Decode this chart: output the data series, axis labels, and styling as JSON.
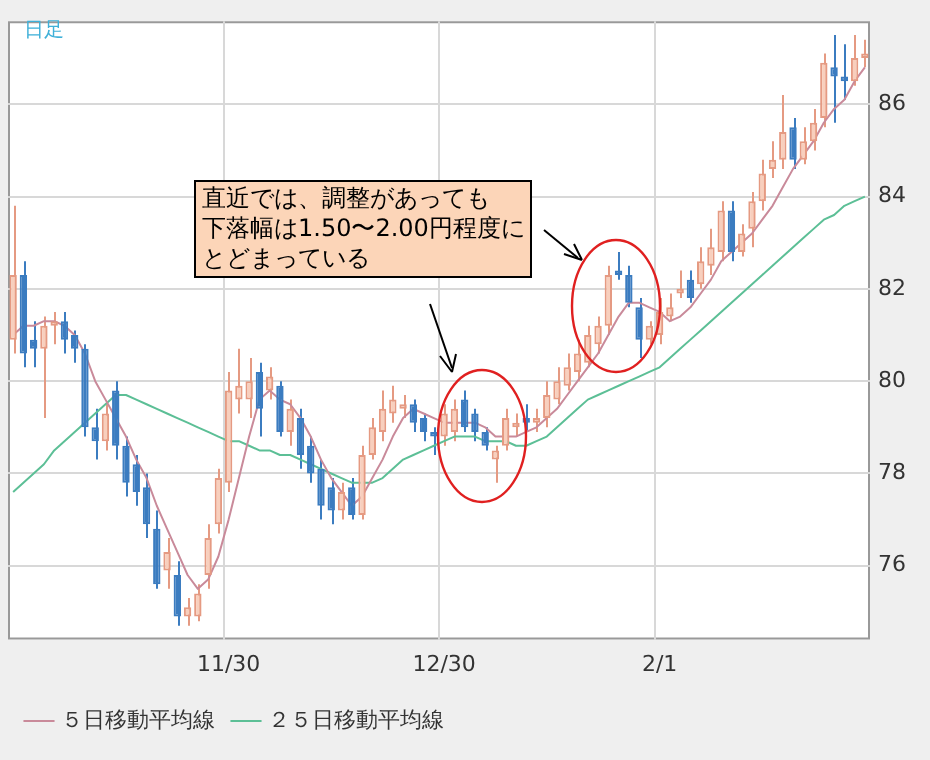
{
  "chart_data": {
    "type": "candlestick",
    "categories": [
      null,
      null,
      null,
      null,
      null,
      null,
      null,
      null,
      null,
      null,
      null,
      null,
      null,
      null,
      null,
      null,
      null,
      null,
      null,
      null,
      null,
      "11/30",
      null,
      null,
      null,
      null,
      null,
      null,
      null,
      null,
      null,
      null,
      null,
      null,
      null,
      null,
      null,
      null,
      null,
      null,
      null,
      null,
      "12/30",
      null,
      null,
      null,
      null,
      null,
      null,
      null,
      null,
      null,
      null,
      null,
      null,
      null,
      null,
      null,
      null,
      null,
      null,
      null,
      null,
      "2/1",
      null,
      null,
      null,
      null,
      null,
      null,
      null,
      null,
      null,
      null,
      null,
      null,
      null,
      null,
      null,
      null,
      null,
      null,
      null,
      null
    ],
    "ohlc": [
      [
        80.9,
        83.8,
        80.6,
        82.3
      ],
      [
        82.3,
        82.6,
        80.3,
        80.6
      ],
      [
        80.9,
        81.3,
        80.3,
        80.7
      ],
      [
        80.7,
        81.4,
        79.2,
        81.2
      ],
      [
        81.2,
        81.5,
        80.8,
        81.3
      ],
      [
        81.3,
        81.5,
        80.6,
        80.9
      ],
      [
        81.0,
        81.1,
        80.4,
        80.7
      ],
      [
        80.7,
        80.8,
        78.8,
        79.0
      ],
      [
        79.0,
        79.4,
        78.3,
        78.7
      ],
      [
        78.7,
        79.5,
        78.5,
        79.3
      ],
      [
        79.8,
        80.0,
        78.3,
        78.6
      ],
      [
        78.6,
        78.8,
        77.5,
        77.8
      ],
      [
        78.2,
        78.4,
        77.3,
        77.6
      ],
      [
        77.7,
        78.0,
        76.6,
        76.9
      ],
      [
        76.8,
        77.2,
        75.5,
        75.6
      ],
      [
        75.9,
        76.6,
        75.5,
        76.3
      ],
      [
        75.8,
        76.1,
        74.7,
        74.9
      ],
      [
        74.9,
        75.3,
        74.7,
        75.1
      ],
      [
        74.9,
        75.6,
        74.8,
        75.4
      ],
      [
        75.8,
        76.9,
        75.5,
        76.6
      ],
      [
        76.9,
        78.1,
        76.7,
        77.9
      ],
      [
        77.8,
        80.2,
        77.6,
        79.8
      ],
      [
        79.6,
        80.7,
        79.3,
        79.9
      ],
      [
        79.6,
        80.5,
        79.2,
        80.0
      ],
      [
        80.2,
        80.4,
        78.8,
        79.4
      ],
      [
        79.8,
        80.3,
        79.6,
        80.1
      ],
      [
        79.9,
        80.0,
        78.8,
        78.9
      ],
      [
        78.9,
        79.6,
        78.6,
        79.4
      ],
      [
        79.2,
        79.4,
        78.1,
        78.4
      ],
      [
        78.6,
        78.8,
        77.8,
        78.0
      ],
      [
        78.1,
        78.3,
        77.0,
        77.3
      ],
      [
        77.7,
        77.9,
        76.9,
        77.2
      ],
      [
        77.2,
        77.8,
        77.0,
        77.6
      ],
      [
        77.7,
        77.9,
        77.0,
        77.1
      ],
      [
        77.1,
        78.6,
        77.0,
        78.4
      ],
      [
        78.4,
        79.2,
        78.3,
        79.0
      ],
      [
        78.9,
        79.8,
        78.7,
        79.4
      ],
      [
        79.3,
        79.9,
        79.1,
        79.6
      ],
      [
        79.4,
        79.7,
        79.2,
        79.5
      ],
      [
        79.5,
        79.6,
        78.9,
        79.1
      ],
      [
        79.2,
        79.3,
        78.7,
        78.9
      ],
      [
        78.9,
        79.0,
        78.4,
        78.8
      ],
      [
        78.8,
        79.5,
        78.6,
        79.3
      ],
      [
        78.9,
        79.6,
        78.7,
        79.4
      ],
      [
        79.6,
        79.8,
        78.9,
        79.0
      ],
      [
        79.3,
        79.4,
        78.7,
        78.9
      ],
      [
        78.9,
        79.0,
        78.5,
        78.6
      ],
      [
        78.3,
        78.6,
        77.8,
        78.5
      ],
      [
        78.6,
        79.4,
        78.5,
        79.2
      ],
      [
        79.0,
        79.3,
        78.8,
        79.1
      ],
      [
        79.2,
        79.5,
        78.9,
        79.1
      ],
      [
        79.1,
        79.4,
        78.9,
        79.2
      ],
      [
        79.2,
        80.0,
        79.0,
        79.7
      ],
      [
        79.6,
        80.3,
        79.5,
        80.0
      ],
      [
        79.9,
        80.6,
        79.8,
        80.3
      ],
      [
        80.2,
        80.9,
        80.0,
        80.6
      ],
      [
        80.4,
        81.2,
        80.3,
        81.0
      ],
      [
        80.8,
        81.4,
        80.6,
        81.2
      ],
      [
        81.2,
        82.5,
        81.0,
        82.3
      ],
      [
        82.4,
        82.8,
        82.2,
        82.3
      ],
      [
        82.3,
        82.5,
        81.6,
        81.7
      ],
      [
        81.6,
        81.8,
        80.5,
        80.9
      ],
      [
        80.9,
        81.3,
        80.8,
        81.2
      ],
      [
        81.0,
        81.8,
        80.8,
        81.5
      ],
      [
        81.4,
        81.9,
        81.3,
        81.6
      ],
      [
        81.9,
        82.4,
        81.8,
        82.0
      ],
      [
        82.2,
        82.4,
        81.7,
        81.8
      ],
      [
        82.1,
        82.9,
        82.0,
        82.6
      ],
      [
        82.5,
        83.3,
        82.3,
        82.9
      ],
      [
        82.8,
        83.9,
        82.6,
        83.7
      ],
      [
        83.7,
        83.9,
        82.6,
        82.8
      ],
      [
        82.8,
        83.4,
        82.7,
        83.2
      ],
      [
        83.3,
        84.1,
        82.9,
        83.9
      ],
      [
        83.9,
        84.8,
        83.7,
        84.5
      ],
      [
        84.6,
        85.2,
        84.4,
        84.8
      ],
      [
        84.8,
        86.2,
        84.6,
        85.4
      ],
      [
        85.5,
        85.7,
        84.6,
        84.8
      ],
      [
        84.8,
        85.5,
        84.7,
        85.2
      ],
      [
        85.2,
        85.9,
        85.0,
        85.6
      ],
      [
        85.7,
        87.1,
        85.5,
        86.9
      ],
      [
        86.8,
        87.5,
        85.6,
        86.6
      ],
      [
        86.6,
        87.3,
        86.1,
        86.5
      ],
      [
        86.5,
        87.5,
        86.4,
        87.0
      ],
      [
        87.0,
        87.4,
        86.8,
        87.1
      ]
    ],
    "series": [
      {
        "name": "５日移動平均線",
        "type": "line",
        "color": "#c98a9a",
        "values": [
          81.0,
          81.2,
          81.2,
          81.3,
          81.3,
          81.2,
          81.0,
          80.6,
          80.0,
          79.6,
          79.2,
          78.8,
          78.3,
          77.9,
          77.3,
          76.8,
          76.3,
          75.8,
          75.5,
          75.7,
          76.2,
          77.0,
          77.9,
          78.8,
          79.6,
          79.8,
          79.6,
          79.5,
          79.2,
          78.8,
          78.3,
          77.9,
          77.6,
          77.3,
          77.5,
          77.9,
          78.3,
          78.8,
          79.2,
          79.4,
          79.3,
          79.2,
          79.1,
          79.1,
          79.1,
          79.1,
          79.0,
          78.8,
          78.8,
          78.8,
          78.9,
          79.0,
          79.2,
          79.4,
          79.7,
          80.0,
          80.3,
          80.6,
          81.0,
          81.4,
          81.7,
          81.7,
          81.6,
          81.5,
          81.3,
          81.4,
          81.6,
          81.9,
          82.2,
          82.6,
          82.8,
          83.0,
          83.2,
          83.5,
          83.8,
          84.2,
          84.6,
          84.9,
          85.2,
          85.6,
          85.9,
          86.1,
          86.5,
          86.8
        ]
      },
      {
        "name": "２５日移動平均線",
        "type": "line",
        "color": "#5cbf96",
        "values": [
          77.6,
          77.8,
          78.0,
          78.2,
          78.5,
          78.7,
          78.9,
          79.1,
          79.3,
          79.5,
          79.7,
          79.7,
          79.6,
          79.5,
          79.4,
          79.3,
          79.2,
          79.1,
          79.0,
          78.9,
          78.8,
          78.7,
          78.7,
          78.6,
          78.5,
          78.5,
          78.4,
          78.4,
          78.3,
          78.2,
          78.1,
          78.0,
          77.9,
          77.8,
          77.8,
          77.8,
          77.9,
          78.1,
          78.3,
          78.4,
          78.5,
          78.6,
          78.7,
          78.8,
          78.8,
          78.8,
          78.7,
          78.7,
          78.7,
          78.6,
          78.6,
          78.7,
          78.8,
          79.0,
          79.2,
          79.4,
          79.6,
          79.7,
          79.8,
          79.9,
          80.0,
          80.1,
          80.2,
          80.3,
          80.5,
          80.7,
          80.9,
          81.1,
          81.3,
          81.5,
          81.7,
          81.9,
          82.1,
          82.3,
          82.5,
          82.7,
          82.9,
          83.1,
          83.3,
          83.5,
          83.6,
          83.8,
          83.9,
          84.0
        ]
      }
    ],
    "ylim": [
      74.4,
      87.8
    ],
    "yticks": [
      76,
      78,
      80,
      82,
      84,
      86
    ],
    "grid": true,
    "legend": "bottom",
    "annotations": [
      "日足",
      "直近では、調整があっても",
      "下落幅は1.50〜2.00円程度に",
      "とどまっている"
    ]
  }
}
